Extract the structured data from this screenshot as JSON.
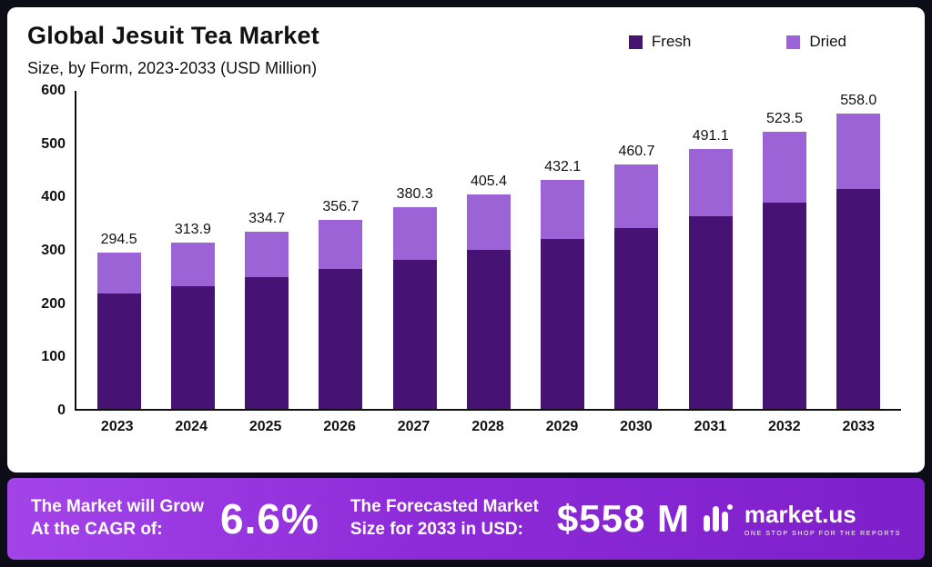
{
  "chart": {
    "title": "Global Jesuit Tea Market",
    "subtitle": "Size, by Form, 2023-2033 (USD Million)",
    "legend": [
      {
        "label": "Fresh",
        "color": "#461274"
      },
      {
        "label": "Dried",
        "color": "#9b63d6"
      }
    ]
  },
  "chart_data": {
    "type": "bar",
    "stacked": true,
    "title": "Global Jesuit Tea Market Size, by Form, 2023-2033 (USD Million)",
    "categories": [
      "2023",
      "2024",
      "2025",
      "2026",
      "2027",
      "2028",
      "2029",
      "2030",
      "2031",
      "2032",
      "2033"
    ],
    "series": [
      {
        "name": "Fresh",
        "color": "#461274",
        "values": [
          218.0,
          232.0,
          248.0,
          264.0,
          282.0,
          300.0,
          320.0,
          342.0,
          364.0,
          389.0,
          415.0
        ]
      },
      {
        "name": "Dried",
        "color": "#9b63d6",
        "values": [
          76.5,
          81.9,
          86.7,
          92.7,
          98.3,
          105.4,
          112.1,
          118.7,
          127.1,
          134.5,
          143.0
        ]
      }
    ],
    "totals": [
      294.5,
      313.9,
      334.7,
      356.7,
      380.3,
      405.4,
      432.1,
      460.7,
      491.1,
      523.5,
      558.0
    ],
    "xlabel": "",
    "ylabel": "",
    "ylim": [
      0,
      600
    ],
    "yticks": [
      0,
      100,
      200,
      300,
      400,
      500,
      600
    ],
    "grid": false,
    "legend_position": "top-right"
  },
  "banner": {
    "grow_line1": "The Market will Grow",
    "grow_line2": "At the CAGR of:",
    "cagr": "6.6%",
    "forecast_line1": "The Forecasted Market",
    "forecast_line2": "Size for 2033 in USD:",
    "forecast_value": "$558 M",
    "logo_name": "market.us",
    "logo_tagline": "ONE STOP SHOP FOR THE REPORTS"
  }
}
